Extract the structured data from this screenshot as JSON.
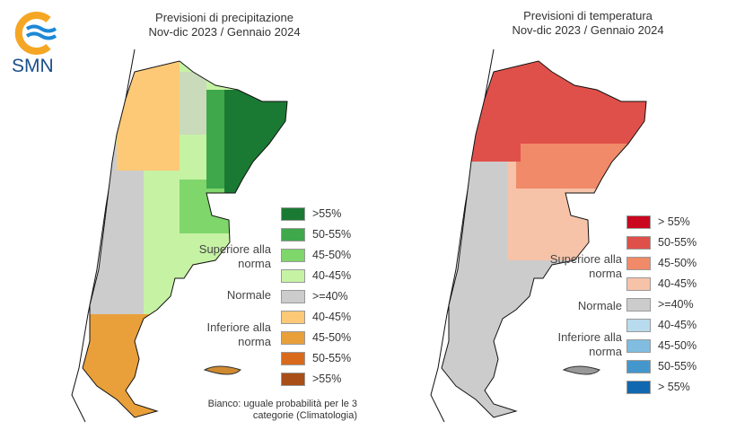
{
  "logo": {
    "text": "SMN",
    "colors": {
      "sun": "#f5a623",
      "waves": "#1e88d6"
    }
  },
  "precip": {
    "title_line1": "Previsioni di precipitazione",
    "title_line2": "Nov-dic 2023 / Gennaio 2024",
    "categories": {
      "above": "Superiore alla norma",
      "normal": "Normale",
      "below": "Inferiore alla norma"
    },
    "legend": [
      {
        "label": ">55%",
        "color": "#1a7a33"
      },
      {
        "label": "50-55%",
        "color": "#3ea84a"
      },
      {
        "label": "45-50%",
        "color": "#7fd66b"
      },
      {
        "label": "40-45%",
        "color": "#c6f2a4"
      },
      {
        "label": ">=40%",
        "color": "#cccccc"
      },
      {
        "label": "40-45%",
        "color": "#fdc977"
      },
      {
        "label": "45-50%",
        "color": "#e9a03a"
      },
      {
        "label": "50-55%",
        "color": "#d96a1c"
      },
      {
        "label": ">55%",
        "color": "#a84e16"
      }
    ],
    "note": "Bianco: uguale probabilità per le 3 categorie (Climatologia)"
  },
  "temp": {
    "title_line1": "Previsioni di temperatura",
    "title_line2": "Nov-dic 2023 / Gennaio 2024",
    "categories": {
      "above": "Superiore alla norma",
      "normal": "Normale",
      "below": "Inferiore alla norma"
    },
    "legend": [
      {
        "label": "> 55%",
        "color": "#c9071e"
      },
      {
        "label": "50-55%",
        "color": "#e0504a"
      },
      {
        "label": "45-50%",
        "color": "#f08a68"
      },
      {
        "label": "40-45%",
        "color": "#f6c3a8"
      },
      {
        "label": ">=40%",
        "color": "#cccccc"
      },
      {
        "label": "40-45%",
        "color": "#b8dbee"
      },
      {
        "label": "45-50%",
        "color": "#80bde0"
      },
      {
        "label": "50-55%",
        "color": "#4497cc"
      },
      {
        "label": "> 55%",
        "color": "#1168b0"
      }
    ]
  }
}
